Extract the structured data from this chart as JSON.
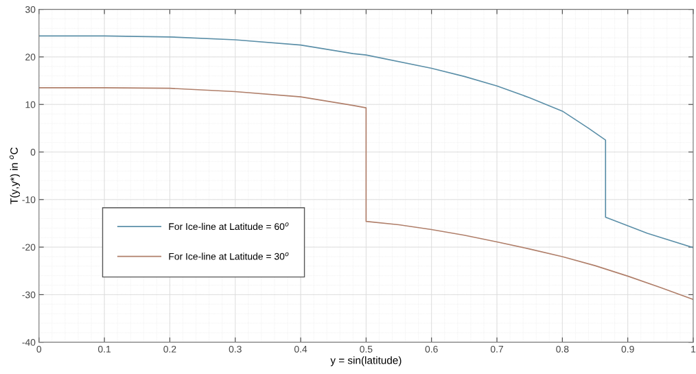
{
  "chart_data": {
    "type": "line",
    "xlabel": "y = sin(latitude)",
    "ylabel": "T(y,y*) in $^{o}$C",
    "xlim": [
      0,
      1
    ],
    "ylim": [
      -40,
      30
    ],
    "xticks": [
      0,
      0.1,
      0.2,
      0.3,
      0.4,
      0.5,
      0.6,
      0.7,
      0.8,
      0.9,
      1
    ],
    "yticks": [
      -40,
      -30,
      -20,
      -10,
      0,
      10,
      20,
      30
    ],
    "grid": true,
    "legend": "left",
    "marker": "none",
    "line_style": "solid",
    "series": [
      {
        "name": "For Ice-line at Latitude = 60$^{o}$",
        "color": "#5b8fa8",
        "x": [
          0,
          0.1,
          0.2,
          0.3,
          0.4,
          0.48,
          0.5,
          0.6,
          0.65,
          0.7,
          0.75,
          0.8,
          0.84,
          0.866,
          0.866,
          0.93,
          1
        ],
        "values": [
          24.4,
          24.4,
          24.2,
          23.6,
          22.5,
          20.7,
          20.4,
          17.6,
          15.9,
          13.9,
          11.4,
          8.6,
          5.0,
          2.5,
          -13.7,
          -17.1,
          -20.1
        ]
      },
      {
        "name": "For Ice-line at Latitude = 30$^{o}$",
        "color": "#b07f6a",
        "x": [
          0,
          0.1,
          0.2,
          0.3,
          0.4,
          0.48,
          0.5,
          0.5,
          0.55,
          0.6,
          0.65,
          0.7,
          0.75,
          0.8,
          0.85,
          0.9,
          0.95,
          1
        ],
        "values": [
          13.5,
          13.5,
          13.4,
          12.7,
          11.6,
          9.8,
          9.3,
          -14.6,
          -15.3,
          -16.3,
          -17.5,
          -18.9,
          -20.4,
          -22.0,
          -23.9,
          -26.1,
          -28.5,
          -31.0
        ]
      }
    ]
  }
}
